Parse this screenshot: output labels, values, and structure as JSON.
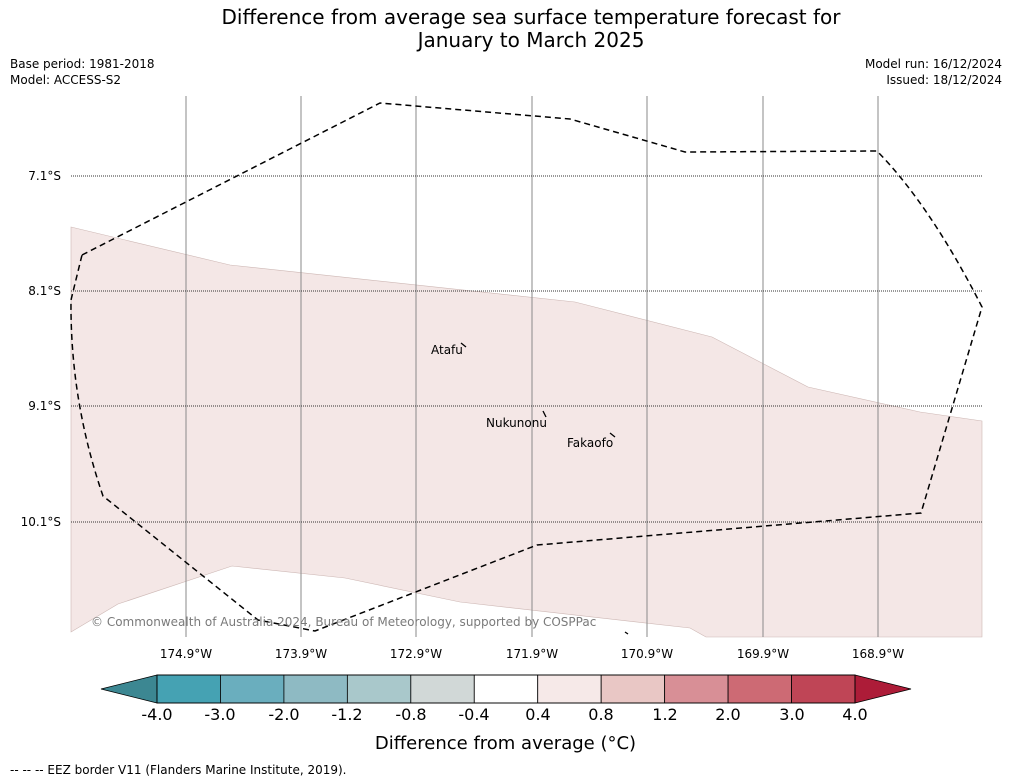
{
  "title": {
    "line1": "Difference from average sea surface temperature forecast for",
    "line2": "January to March 2025"
  },
  "meta": {
    "base_period": "Base period: 1981-2018",
    "model": "Model: ACCESS-S2",
    "model_run": "Model run: 16/12/2024",
    "issued": "Issued: 18/12/2024"
  },
  "map": {
    "latitude_labels": [
      "7.1°S",
      "8.1°S",
      "9.1°S",
      "10.1°S"
    ],
    "longitude_labels": [
      "174.9°W",
      "173.9°W",
      "172.9°W",
      "171.9°W",
      "170.9°W",
      "169.9°W",
      "168.9°W"
    ],
    "places": [
      "Atafu",
      "Nukunonu",
      "Fakaofo"
    ],
    "copyright": "© Commonwealth of Australia 2024, Bureau of Meteorology, supported by COSPPac",
    "anomaly_fill_color": "#f4e7e6",
    "eez_border_style": "dashed"
  },
  "colorbar": {
    "title": "Difference from average (°C)",
    "ticks": [
      "-4.0",
      "-3.0",
      "-2.0",
      "-1.2",
      "-0.8",
      "-0.4",
      "0.4",
      "0.8",
      "1.2",
      "2.0",
      "3.0",
      "4.0"
    ],
    "under_color": "#3c8792",
    "over_color": "#ad1c38",
    "colors": [
      "#45a2b3",
      "#6aaebe",
      "#8ebac3",
      "#a9c8cb",
      "#d1d8d7",
      "#ffffff",
      "#f6e9e8",
      "#e9c7c5",
      "#d88f96",
      "#cd6a74",
      "#bf4556"
    ]
  },
  "footnote": "--  --  -- EEZ border V11 (Flanders Marine Institute, 2019)."
}
